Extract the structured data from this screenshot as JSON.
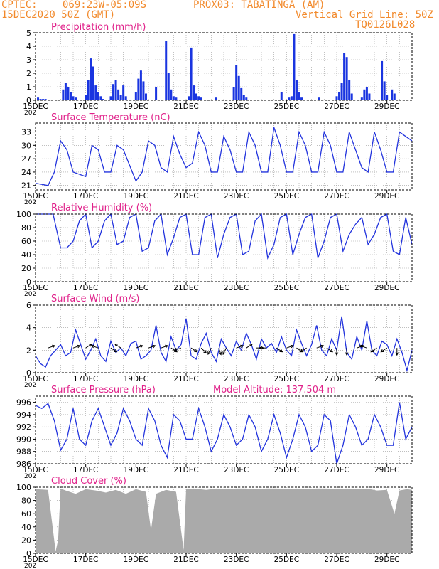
{
  "header": {
    "source": "CPTEC:",
    "location": "069:23W-05:09S",
    "point": "PROX03: TABATINGA (AM)",
    "run_date": "15DEC2020 50Z (GMT)",
    "grid_note": "Vertical Grid Line: 50Z",
    "model_code": "TQ0126L028",
    "model_altitude": "Model Altitude: 137.504 m"
  },
  "x_axis": {
    "ticks": [
      "15DEC",
      "17DEC",
      "19DEC",
      "21DEC",
      "23DEC",
      "25DEC",
      "27DEC",
      "29DEC"
    ],
    "tick_days": [
      0,
      2,
      4,
      6,
      8,
      10,
      12,
      14
    ],
    "range_days": [
      0,
      15
    ],
    "gridline_every_days": 0.5,
    "year_fragment": "202"
  },
  "colors": {
    "header": "#f28a2c",
    "title": "#e0218a",
    "line": "#2233dd",
    "bars": "#1a35e0",
    "cloud": "#aaaaaa",
    "grid": "#999999",
    "arrow": "#000000"
  },
  "chart_data": [
    {
      "id": "precip",
      "type": "bar",
      "title": "Precipitation (mm/h)",
      "ylim": [
        0,
        5
      ],
      "yticks": [
        "0",
        "1",
        "2",
        "3",
        "4",
        "5"
      ],
      "x": [
        0.1,
        0.2,
        0.3,
        0.4,
        1.1,
        1.2,
        1.3,
        1.4,
        1.5,
        1.6,
        2.0,
        2.1,
        2.2,
        2.3,
        2.4,
        2.5,
        2.6,
        2.7,
        3.0,
        3.1,
        3.2,
        3.3,
        3.4,
        3.5,
        3.6,
        4.0,
        4.1,
        4.2,
        4.3,
        4.4,
        4.8,
        5.2,
        5.3,
        5.4,
        5.5,
        5.6,
        6.1,
        6.2,
        6.3,
        6.4,
        6.5,
        6.6,
        7.2,
        7.9,
        8.0,
        8.1,
        8.2,
        8.3,
        8.4,
        9.8,
        10.1,
        10.2,
        10.3,
        10.4,
        10.5,
        10.6,
        11.3,
        12.0,
        12.1,
        12.2,
        12.3,
        12.4,
        12.5,
        12.6,
        13.0,
        13.1,
        13.2,
        13.3,
        13.8,
        13.9,
        14.0,
        14.2,
        14.3
      ],
      "values": [
        0.2,
        0.1,
        0.1,
        0.1,
        0.8,
        1.3,
        1.0,
        0.6,
        0.3,
        0.2,
        0.4,
        1.5,
        3.1,
        2.5,
        1.1,
        0.6,
        0.3,
        0.1,
        0.3,
        1.2,
        1.5,
        0.8,
        0.4,
        1.1,
        0.3,
        0.6,
        1.6,
        2.2,
        1.4,
        0.5,
        1.0,
        4.4,
        2.0,
        0.8,
        0.3,
        0.2,
        0.3,
        3.9,
        1.1,
        0.5,
        0.3,
        0.2,
        0.2,
        1.0,
        2.6,
        1.8,
        0.9,
        0.4,
        0.2,
        0.6,
        0.2,
        0.3,
        4.9,
        1.5,
        0.6,
        0.2,
        0.2,
        0.3,
        0.6,
        1.3,
        3.5,
        3.2,
        1.5,
        0.5,
        0.2,
        0.8,
        1.0,
        0.5,
        2.9,
        1.4,
        0.4,
        0.8,
        0.5
      ]
    },
    {
      "id": "temp",
      "type": "line",
      "title": "Surface Temperature (nC)",
      "ylim": [
        20,
        35
      ],
      "yticks": [
        "21",
        "24",
        "27",
        "30",
        "33"
      ],
      "ytick_vals": [
        21,
        24,
        27,
        30,
        33
      ],
      "x": [
        0,
        0.5,
        0.75,
        1.0,
        1.25,
        1.5,
        2.0,
        2.25,
        2.5,
        2.75,
        3.0,
        3.25,
        3.5,
        4.0,
        4.25,
        4.5,
        4.75,
        5.0,
        5.25,
        5.5,
        5.75,
        6.0,
        6.25,
        6.5,
        6.75,
        7.0,
        7.25,
        7.5,
        7.75,
        8.0,
        8.25,
        8.5,
        8.75,
        9.0,
        9.25,
        9.5,
        9.75,
        10.0,
        10.25,
        10.5,
        10.75,
        11.0,
        11.25,
        11.5,
        11.75,
        12.0,
        12.25,
        12.5,
        12.75,
        13.0,
        13.25,
        13.5,
        13.75,
        14.0,
        14.25,
        14.5,
        14.75,
        15.0
      ],
      "values": [
        21.5,
        21,
        24,
        31,
        29,
        24,
        23,
        30,
        29,
        24,
        24,
        30,
        29,
        22,
        24,
        31,
        30,
        25,
        24,
        32,
        28,
        25,
        26,
        33,
        30,
        24,
        24,
        32,
        29,
        24,
        24,
        33,
        30,
        24,
        24,
        34,
        30,
        24,
        24,
        33,
        30,
        24,
        24,
        33,
        30,
        24,
        24,
        33,
        29,
        25,
        24,
        33,
        29,
        24,
        24,
        33,
        32,
        31
      ]
    },
    {
      "id": "rh",
      "type": "line",
      "title": "Relative Humidity (%)",
      "ylim": [
        0,
        100
      ],
      "yticks": [
        "0",
        "20",
        "40",
        "60",
        "80",
        "100"
      ],
      "x": [
        0,
        0.4,
        0.7,
        1.0,
        1.25,
        1.5,
        1.75,
        2.0,
        2.25,
        2.5,
        2.75,
        3.0,
        3.25,
        3.5,
        3.75,
        4.0,
        4.25,
        4.5,
        4.75,
        5.0,
        5.25,
        5.5,
        5.75,
        6.0,
        6.25,
        6.5,
        6.75,
        7.0,
        7.25,
        7.5,
        7.75,
        8.0,
        8.25,
        8.5,
        8.75,
        9.0,
        9.25,
        9.5,
        9.75,
        10.0,
        10.25,
        10.5,
        10.75,
        11.0,
        11.25,
        11.5,
        11.75,
        12.0,
        12.25,
        12.5,
        12.75,
        13.0,
        13.25,
        13.5,
        13.75,
        14.0,
        14.25,
        14.5,
        14.75,
        15.0
      ],
      "values": [
        100,
        100,
        100,
        50,
        50,
        60,
        90,
        100,
        50,
        60,
        90,
        100,
        55,
        60,
        95,
        100,
        45,
        50,
        90,
        100,
        40,
        65,
        95,
        100,
        40,
        40,
        95,
        100,
        35,
        70,
        95,
        100,
        40,
        45,
        90,
        100,
        35,
        55,
        95,
        100,
        40,
        70,
        95,
        100,
        35,
        60,
        95,
        100,
        45,
        70,
        85,
        95,
        55,
        70,
        95,
        100,
        45,
        40,
        95,
        55
      ]
    },
    {
      "id": "wind",
      "type": "line",
      "title": "Surface Wind (m/s)",
      "ylim": [
        0,
        6
      ],
      "yticks": [
        "0",
        "2",
        "4",
        "6"
      ],
      "x": [
        0,
        0.2,
        0.4,
        0.6,
        0.8,
        1.0,
        1.2,
        1.4,
        1.6,
        1.8,
        2.0,
        2.2,
        2.4,
        2.6,
        2.8,
        3.0,
        3.2,
        3.4,
        3.6,
        3.8,
        4.0,
        4.2,
        4.4,
        4.6,
        4.8,
        5.0,
        5.2,
        5.4,
        5.6,
        5.8,
        6.0,
        6.2,
        6.4,
        6.6,
        6.8,
        7.0,
        7.2,
        7.4,
        7.6,
        7.8,
        8.0,
        8.2,
        8.4,
        8.6,
        8.8,
        9.0,
        9.2,
        9.4,
        9.6,
        9.8,
        10.0,
        10.2,
        10.4,
        10.6,
        10.8,
        11.0,
        11.2,
        11.4,
        11.6,
        11.8,
        12.0,
        12.2,
        12.4,
        12.6,
        12.8,
        13.0,
        13.2,
        13.4,
        13.6,
        13.8,
        14.0,
        14.2,
        14.4,
        14.6,
        14.8,
        15.0
      ],
      "values": [
        1.5,
        0.8,
        0.5,
        1.5,
        2.0,
        2.5,
        1.5,
        1.8,
        3.8,
        2.5,
        1.2,
        2.0,
        3.0,
        1.5,
        1.0,
        2.8,
        1.8,
        2.2,
        1.5,
        2.6,
        2.8,
        1.2,
        1.5,
        2.0,
        4.2,
        1.8,
        1.0,
        3.2,
        2.0,
        2.5,
        4.8,
        1.5,
        1.2,
        2.6,
        3.5,
        1.8,
        1.0,
        3.0,
        2.2,
        1.5,
        2.8,
        2.0,
        3.5,
        2.5,
        1.2,
        3.0,
        2.2,
        2.6,
        1.8,
        3.2,
        2.0,
        1.5,
        3.8,
        2.6,
        1.5,
        2.5,
        4.2,
        2.0,
        1.5,
        3.0,
        2.0,
        5.0,
        1.8,
        1.2,
        3.2,
        2.0,
        4.6,
        2.0,
        1.5,
        2.8,
        2.5,
        1.5,
        3.0,
        1.8,
        0.2,
        2.0
      ],
      "arrows": {
        "x": [
          0.5,
          1.5,
          2.0,
          2.5,
          3.0,
          3.4,
          4.0,
          4.5,
          5.0,
          5.4,
          5.8,
          6.2,
          6.6,
          7.0,
          7.3,
          7.6,
          8.0,
          8.4,
          8.8,
          9.2,
          9.6,
          10.0,
          10.4,
          10.8,
          11.2,
          11.6,
          12.0,
          12.4,
          12.8,
          13.2,
          13.6,
          14.0,
          14.4
        ],
        "u": [
          1.5,
          1.5,
          1.5,
          -1.5,
          1.5,
          -1.5,
          1.5,
          1.5,
          1.5,
          1.5,
          -1.5,
          1.5,
          1.0,
          -0.5,
          0.5,
          -0.5,
          1.5,
          1.5,
          1.5,
          -1.5,
          1.5,
          1.5,
          1.5,
          -1.5,
          1.5,
          1.5,
          0.0,
          0.0,
          1.5,
          -1.5,
          -1.5,
          -1.5,
          0.0
        ],
        "v": [
          0.5,
          0.5,
          1.0,
          0.5,
          -1.0,
          1.0,
          0.5,
          0.5,
          0.5,
          -1.0,
          -0.5,
          -1.0,
          -1.0,
          -1.0,
          -1.5,
          -1.0,
          0.5,
          1.0,
          0.0,
          0.0,
          -1.0,
          0.5,
          -1.0,
          -1.0,
          0.5,
          -1.0,
          -1.5,
          -1.0,
          0.5,
          0.5,
          -1.0,
          -1.0,
          -1.0
        ]
      }
    },
    {
      "id": "pressure",
      "type": "line",
      "title": "Surface Pressure (hPa)",
      "ylim": [
        986,
        997
      ],
      "yticks": [
        "986",
        "988",
        "990",
        "992",
        "994",
        "996"
      ],
      "ytick_vals": [
        986,
        988,
        990,
        992,
        994,
        996
      ],
      "x": [
        0,
        0.25,
        0.5,
        0.75,
        1.0,
        1.25,
        1.5,
        1.75,
        2.0,
        2.25,
        2.5,
        2.75,
        3.0,
        3.25,
        3.5,
        3.75,
        4.0,
        4.25,
        4.5,
        4.75,
        5.0,
        5.25,
        5.5,
        5.75,
        6.0,
        6.25,
        6.5,
        6.75,
        7.0,
        7.25,
        7.5,
        7.75,
        8.0,
        8.25,
        8.5,
        8.75,
        9.0,
        9.25,
        9.5,
        9.75,
        10.0,
        10.25,
        10.5,
        10.75,
        11.0,
        11.25,
        11.5,
        11.75,
        12.0,
        12.25,
        12.5,
        12.75,
        13.0,
        13.25,
        13.5,
        13.75,
        14.0,
        14.25,
        14.5,
        14.75,
        15.0
      ],
      "values": [
        995.5,
        995,
        995.8,
        993,
        988.2,
        990,
        995,
        990,
        989,
        993,
        995,
        992,
        989,
        991,
        995,
        993,
        990,
        989,
        995,
        993,
        989,
        987,
        994,
        993,
        990,
        990,
        995,
        992,
        988,
        990,
        994,
        992,
        989,
        990,
        994,
        992,
        988,
        990,
        994,
        991,
        987,
        990,
        994,
        992,
        988,
        989,
        994,
        993,
        986,
        989,
        994,
        992,
        989,
        990,
        994,
        992,
        989,
        989,
        996,
        990,
        992
      ]
    },
    {
      "id": "cloud",
      "type": "area",
      "title": "Cloud Cover (%)",
      "ylim": [
        0,
        100
      ],
      "yticks": [
        "0",
        "20",
        "40",
        "60",
        "80",
        "100"
      ],
      "x": [
        0,
        0.5,
        0.8,
        0.9,
        1.0,
        1.2,
        1.6,
        2.0,
        2.4,
        2.8,
        3.2,
        3.6,
        4.0,
        4.4,
        4.6,
        4.8,
        5.2,
        5.6,
        5.9,
        6.0,
        6.3,
        6.8,
        7.2,
        7.6,
        8.0,
        8.4,
        8.8,
        9.2,
        9.6,
        10.0,
        10.4,
        10.8,
        11.2,
        11.6,
        12.0,
        12.4,
        12.8,
        13.2,
        13.6,
        14.0,
        14.3,
        14.5,
        14.8,
        15.0
      ],
      "values": [
        97,
        96,
        3,
        20,
        98,
        95,
        90,
        97,
        95,
        92,
        96,
        90,
        97,
        93,
        35,
        90,
        96,
        93,
        5,
        97,
        98,
        96,
        98,
        97,
        98,
        98,
        97,
        98,
        98,
        97,
        98,
        97,
        98,
        98,
        97,
        98,
        97,
        98,
        95,
        96,
        60,
        95,
        97,
        96
      ]
    }
  ]
}
